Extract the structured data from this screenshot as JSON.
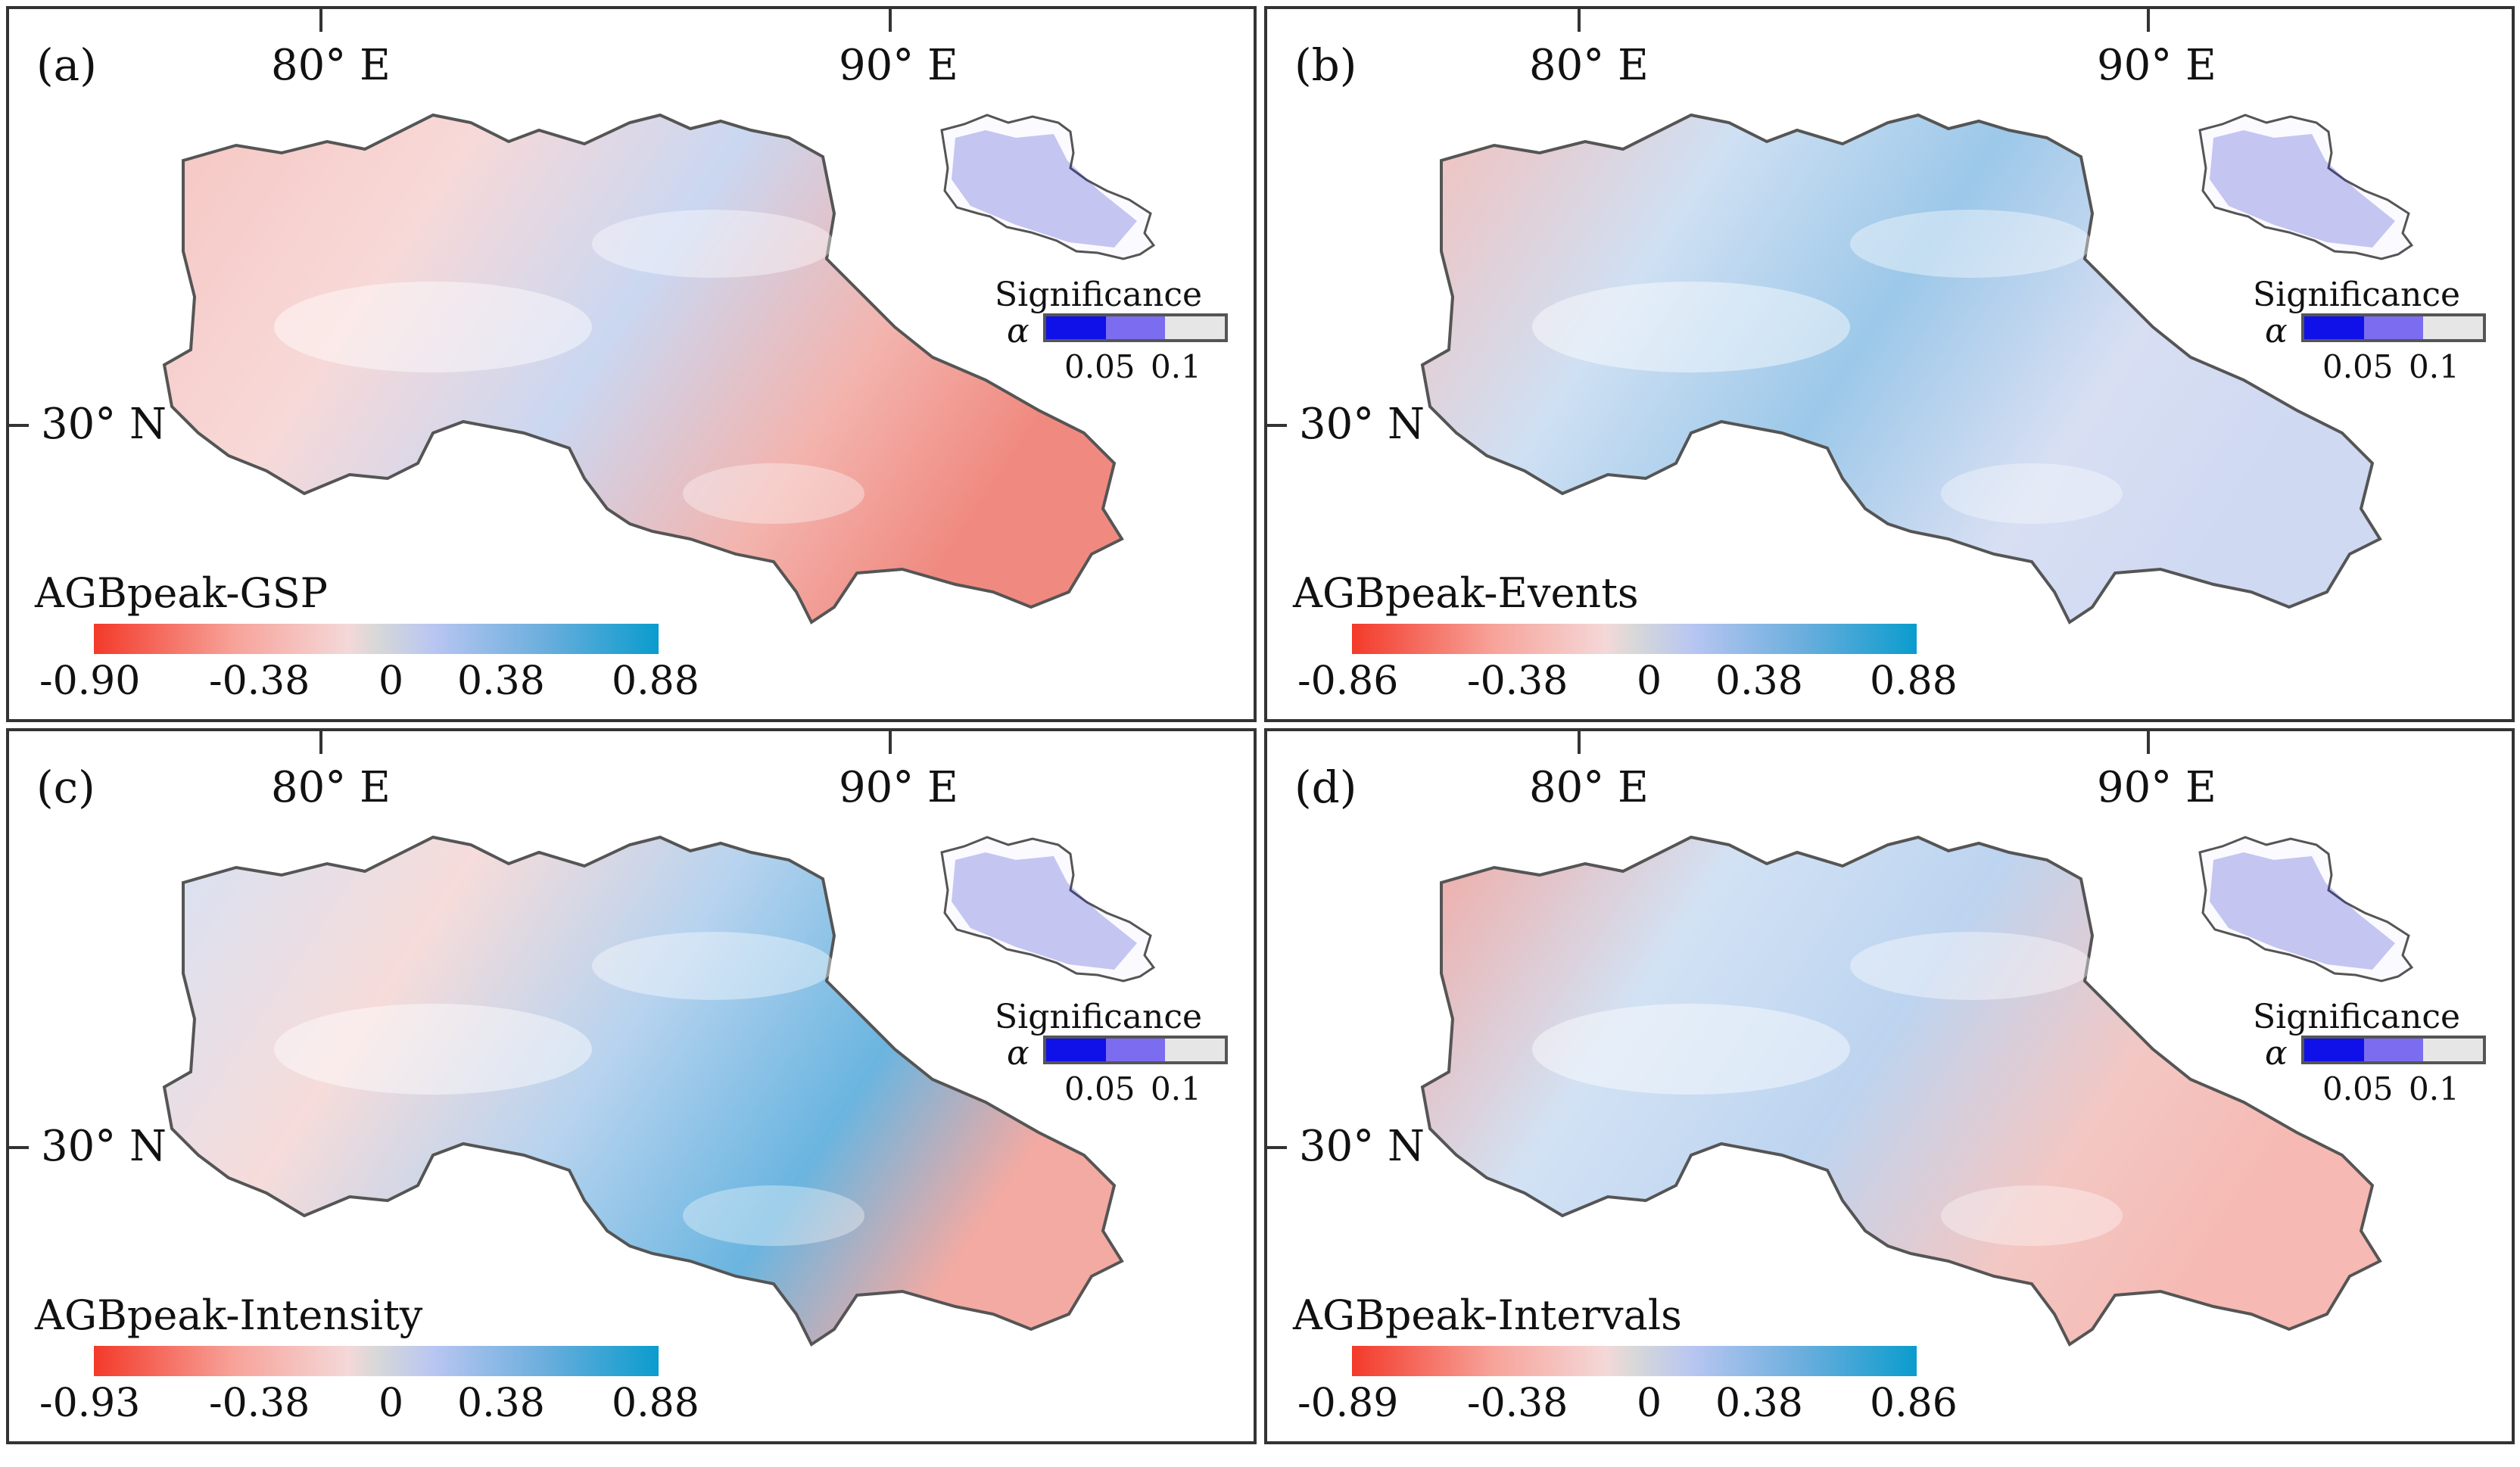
{
  "panels": [
    {
      "label": "(a)",
      "lon_labels": [
        "80° E",
        "90° E"
      ],
      "lat_label": "30° N",
      "significance": {
        "title": "Significance",
        "alpha_symbol": "α",
        "ticks": [
          "0.05",
          "0.1"
        ]
      },
      "variable": "AGBpeak-GSP",
      "colorbar_ticks": [
        "-0.90",
        "-0.38",
        "0",
        "0.38",
        "0.88"
      ]
    },
    {
      "label": "(b)",
      "lon_labels": [
        "80° E",
        "90° E"
      ],
      "lat_label": "30° N",
      "significance": {
        "title": "Significance",
        "alpha_symbol": "α",
        "ticks": [
          "0.05",
          "0.1"
        ]
      },
      "variable": "AGBpeak-Events",
      "colorbar_ticks": [
        "-0.86",
        "-0.38",
        "0",
        "0.38",
        "0.88"
      ]
    },
    {
      "label": "(c)",
      "lon_labels": [
        "80° E",
        "90° E"
      ],
      "lat_label": "30° N",
      "significance": {
        "title": "Significance",
        "alpha_symbol": "α",
        "ticks": [
          "0.05",
          "0.1"
        ]
      },
      "variable": "AGBpeak-Intensity",
      "colorbar_ticks": [
        "-0.93",
        "-0.38",
        "0",
        "0.38",
        "0.88"
      ]
    },
    {
      "label": "(d)",
      "lon_labels": [
        "80° E",
        "90° E"
      ],
      "lat_label": "30° N",
      "significance": {
        "title": "Significance",
        "alpha_symbol": "α",
        "ticks": [
          "0.05",
          "0.1"
        ]
      },
      "variable": "AGBpeak-Intervals",
      "colorbar_ticks": [
        "-0.89",
        "-0.38",
        "0",
        "0.38",
        "0.86"
      ]
    }
  ],
  "colors": {
    "negative": "#f33a2a",
    "neutral": "#d8d8d8",
    "positive": "#0a9ccd",
    "sig_005": "#1010e8",
    "sig_01": "#7b6cf0",
    "sig_ns": "#e6e6e6",
    "sig_dots": "#2222cc",
    "outline": "#555555"
  }
}
